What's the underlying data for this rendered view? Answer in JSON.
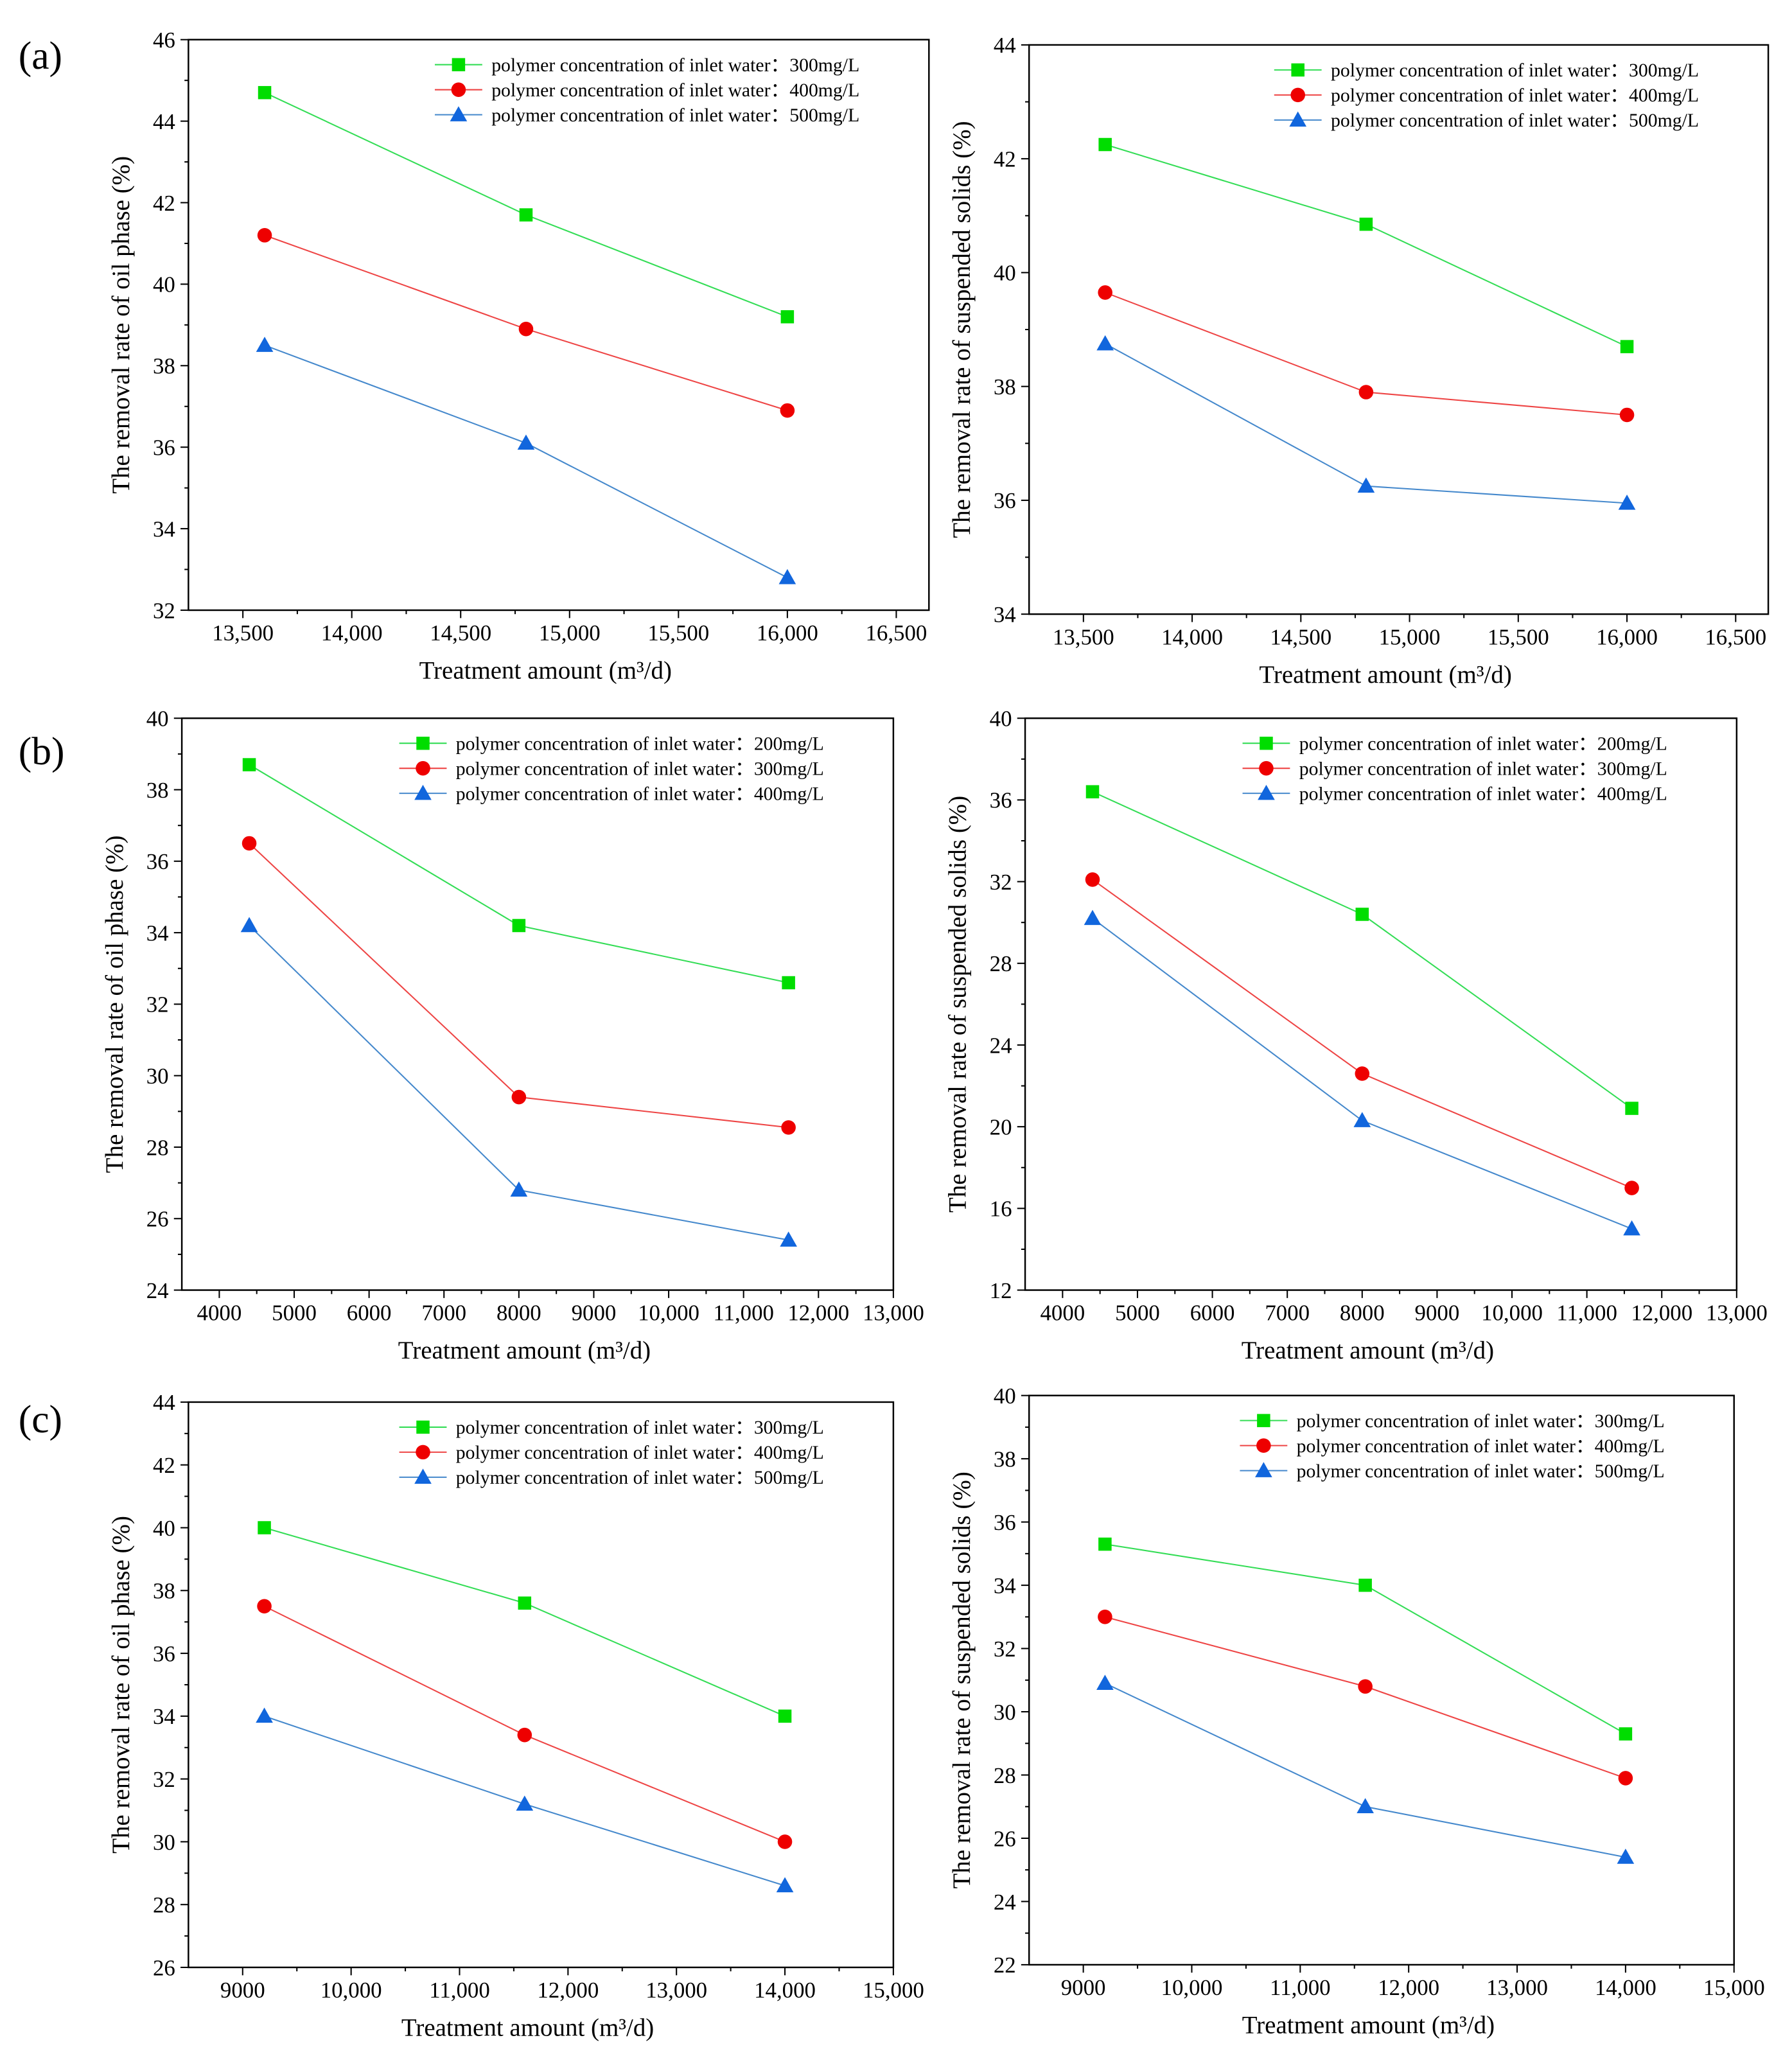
{
  "panel_labels": [
    "(a)",
    "(b)",
    "(c)"
  ],
  "colors": {
    "s1": "#00dd00",
    "s1_line": "#33dd55",
    "s2": "#ee0000",
    "s2_line": "#ee4444",
    "s3": "#1166dd",
    "s3_line": "#4488cc"
  },
  "chart_data": [
    {
      "type": "line",
      "panel": "(a)",
      "xlabel": "Treatment amount (m³/d)",
      "ylabel": "The removal rate of oil phase (%)",
      "xlim": [
        13250,
        16650
      ],
      "ylim": [
        32,
        46
      ],
      "xticks": [
        13500,
        14000,
        14500,
        15000,
        15500,
        16000,
        16500
      ],
      "yticks": [
        32,
        34,
        36,
        38,
        40,
        42,
        44,
        46
      ],
      "legend": "top-right",
      "x": [
        13600,
        14800,
        16000
      ],
      "series": [
        {
          "name": "polymer concentration of inlet water：300mg/L",
          "marker": "square",
          "values": [
            44.7,
            41.7,
            39.2
          ]
        },
        {
          "name": "polymer concentration of inlet water：400mg/L",
          "marker": "circle",
          "values": [
            41.2,
            38.9,
            36.9
          ]
        },
        {
          "name": "polymer concentration of inlet water：500mg/L",
          "marker": "triangle",
          "values": [
            38.5,
            36.1,
            32.8
          ]
        }
      ]
    },
    {
      "type": "line",
      "panel": "(a)",
      "xlabel": "Treatment amount (m³/d)",
      "ylabel": "The removal rate of suspended solids (%)",
      "xlim": [
        13250,
        16650
      ],
      "ylim": [
        34,
        44
      ],
      "xticks": [
        13500,
        14000,
        14500,
        15000,
        15500,
        16000,
        16500
      ],
      "yticks": [
        34,
        36,
        38,
        40,
        42,
        44
      ],
      "legend": "top-right",
      "x": [
        13600,
        14800,
        16000
      ],
      "series": [
        {
          "name": "polymer concentration of inlet water：300mg/L",
          "marker": "square",
          "values": [
            42.25,
            40.85,
            38.7
          ]
        },
        {
          "name": "polymer concentration of inlet water：400mg/L",
          "marker": "circle",
          "values": [
            39.65,
            37.9,
            37.5
          ]
        },
        {
          "name": "polymer concentration of inlet water：500mg/L",
          "marker": "triangle",
          "values": [
            38.75,
            36.25,
            35.95
          ]
        }
      ]
    },
    {
      "type": "line",
      "panel": "(b)",
      "xlabel": "Treatment amount (m³/d)",
      "ylabel": "The removal rate of oil phase (%)",
      "xlim": [
        3500,
        13000
      ],
      "ylim": [
        24,
        40
      ],
      "xticks": [
        4000,
        5000,
        6000,
        7000,
        8000,
        9000,
        10000,
        11000,
        12000,
        13000
      ],
      "yticks": [
        24,
        26,
        28,
        30,
        32,
        34,
        36,
        38,
        40
      ],
      "legend": "top-right",
      "x": [
        4400,
        8000,
        11600
      ],
      "series": [
        {
          "name": "polymer concentration of inlet water：200mg/L",
          "marker": "square",
          "values": [
            38.7,
            34.2,
            32.6
          ]
        },
        {
          "name": "polymer concentration of inlet water：300mg/L",
          "marker": "circle",
          "values": [
            36.5,
            29.4,
            28.55
          ]
        },
        {
          "name": "polymer concentration of inlet water：400mg/L",
          "marker": "triangle",
          "values": [
            34.2,
            26.8,
            25.4
          ]
        }
      ]
    },
    {
      "type": "line",
      "panel": "(b)",
      "xlabel": "Treatment amount (m³/d)",
      "ylabel": "The removal rate of suspended solids (%)",
      "xlim": [
        3500,
        13000
      ],
      "ylim": [
        12,
        40
      ],
      "xticks": [
        4000,
        5000,
        6000,
        7000,
        8000,
        9000,
        10000,
        11000,
        12000,
        13000
      ],
      "yticks": [
        12,
        16,
        20,
        24,
        28,
        32,
        36,
        40
      ],
      "legend": "top-right",
      "x": [
        4400,
        8000,
        11600
      ],
      "series": [
        {
          "name": "polymer concentration of inlet water：200mg/L",
          "marker": "square",
          "values": [
            36.4,
            30.4,
            20.9
          ]
        },
        {
          "name": "polymer concentration of inlet water：300mg/L",
          "marker": "circle",
          "values": [
            32.1,
            22.6,
            17.0
          ]
        },
        {
          "name": "polymer concentration of inlet water：400mg/L",
          "marker": "triangle",
          "values": [
            30.2,
            20.3,
            15.0
          ]
        }
      ]
    },
    {
      "type": "line",
      "panel": "(c)",
      "xlabel": "Treatment amount (m³/d)",
      "ylabel": "The removal rate of oil phase (%)",
      "xlim": [
        8500,
        15000
      ],
      "ylim": [
        26,
        44
      ],
      "xticks": [
        9000,
        10000,
        11000,
        12000,
        13000,
        14000,
        15000
      ],
      "yticks": [
        26,
        28,
        30,
        32,
        34,
        36,
        38,
        40,
        42,
        44
      ],
      "legend": "top-right",
      "x": [
        9200,
        11600,
        14000
      ],
      "series": [
        {
          "name": "polymer concentration of inlet water：300mg/L",
          "marker": "square",
          "values": [
            40.0,
            37.6,
            34.0
          ]
        },
        {
          "name": "polymer concentration of inlet water：400mg/L",
          "marker": "circle",
          "values": [
            37.5,
            33.4,
            30.0
          ]
        },
        {
          "name": "polymer concentration of inlet water：500mg/L",
          "marker": "triangle",
          "values": [
            34.0,
            31.2,
            28.6
          ]
        }
      ]
    },
    {
      "type": "line",
      "panel": "(c)",
      "xlabel": "Treatment amount (m³/d)",
      "ylabel": "The removal rate of suspended solids (%)",
      "xlim": [
        8500,
        15000
      ],
      "ylim": [
        22,
        40
      ],
      "xticks": [
        9000,
        10000,
        11000,
        12000,
        13000,
        14000,
        15000
      ],
      "yticks": [
        22,
        24,
        26,
        28,
        30,
        32,
        34,
        36,
        38,
        40
      ],
      "legend": "top-right",
      "x": [
        9200,
        11600,
        14000
      ],
      "series": [
        {
          "name": "polymer concentration of inlet water：300mg/L",
          "marker": "square",
          "values": [
            35.3,
            34.0,
            29.3
          ]
        },
        {
          "name": "polymer concentration of inlet water：400mg/L",
          "marker": "circle",
          "values": [
            33.0,
            30.8,
            27.9
          ]
        },
        {
          "name": "polymer concentration of inlet water：500mg/L",
          "marker": "triangle",
          "values": [
            30.9,
            27.0,
            25.4
          ]
        }
      ]
    }
  ]
}
